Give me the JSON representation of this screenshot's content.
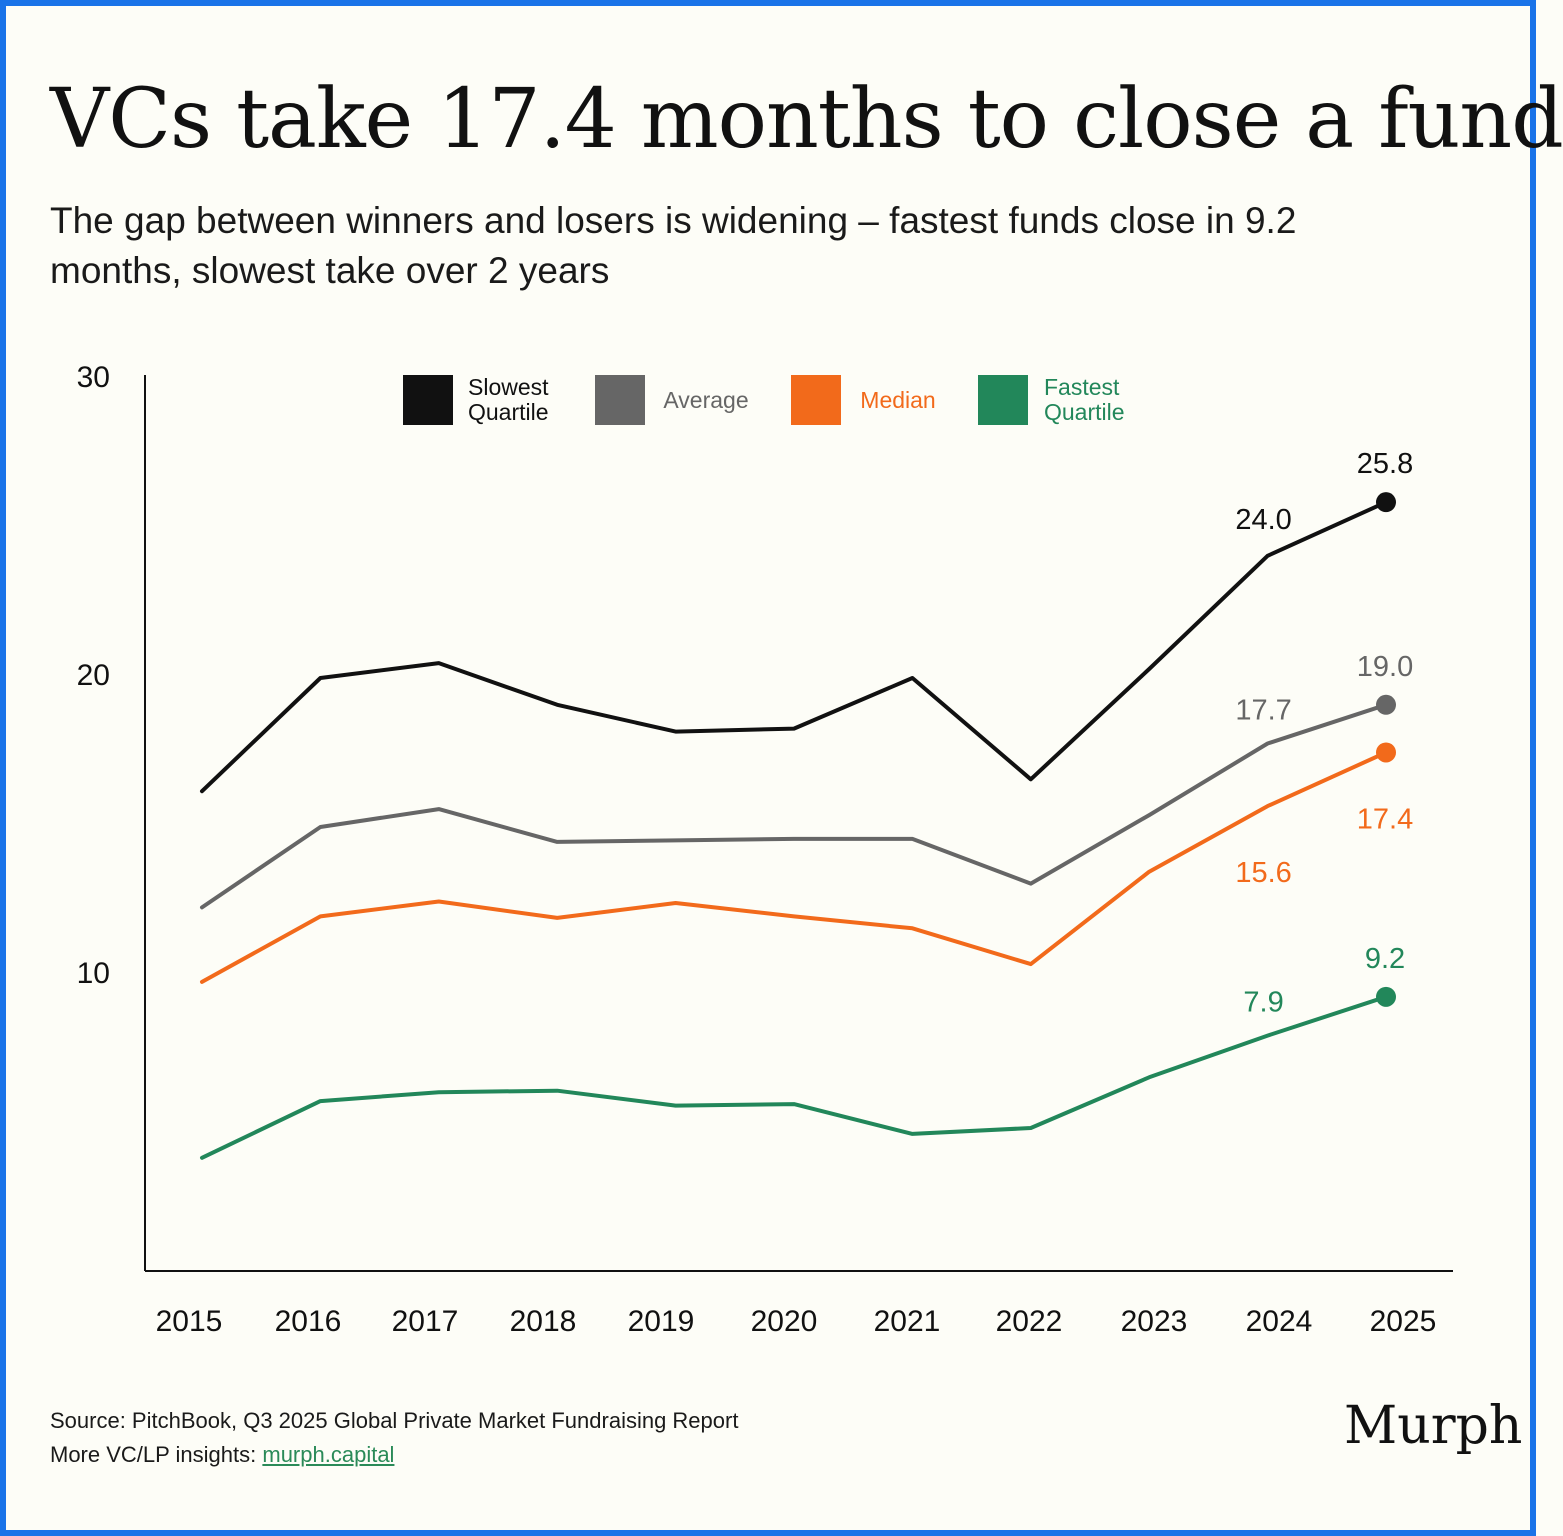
{
  "title": "VCs take 17.4 months to close a fund",
  "subtitle": "The gap between winners and losers is widening – fastest funds close in 9.2 months, slowest take over 2 years",
  "footer": {
    "source": "Source: PitchBook, Q3 2025 Global Private Market Fundraising Report",
    "more_label": "More VC/LP insights:",
    "link_text": "murph.capital"
  },
  "brand": "Murph",
  "colors": {
    "background": "#fdfdf7",
    "border": "#1a73e8",
    "slowest": "#111111",
    "average": "#666666",
    "median": "#f26a1b",
    "fastest": "#22875a"
  },
  "chart_data": {
    "type": "line",
    "categories": [
      "2015",
      "2016",
      "2017",
      "2018",
      "2019",
      "2020",
      "2021",
      "2022",
      "2023",
      "2024",
      "2025"
    ],
    "ylim": [
      0,
      30
    ],
    "yticks": [
      "10",
      "20",
      "30"
    ],
    "legend_position": "top",
    "series": [
      {
        "key": "slowest",
        "name": "Slowest Quartile",
        "legend_lines": [
          "Slowest",
          "Quartile"
        ],
        "color": "#111111",
        "values": [
          16.1,
          19.9,
          20.4,
          19.0,
          18.1,
          18.2,
          19.9,
          16.5,
          20.2,
          24.0,
          25.8
        ]
      },
      {
        "key": "average",
        "name": "Average",
        "legend_lines": [
          "Average"
        ],
        "color": "#666666",
        "values": [
          12.2,
          14.9,
          15.5,
          14.4,
          14.45,
          14.5,
          14.5,
          13.0,
          15.3,
          17.7,
          19.0
        ]
      },
      {
        "key": "median",
        "name": "Median",
        "legend_lines": [
          "Median"
        ],
        "color": "#f26a1b",
        "values": [
          9.7,
          11.9,
          12.4,
          11.85,
          12.35,
          11.9,
          11.5,
          10.3,
          13.4,
          15.6,
          17.4
        ]
      },
      {
        "key": "fastest",
        "name": "Fastest Quartile",
        "legend_lines": [
          "Fastest",
          "Quartile"
        ],
        "color": "#22875a",
        "values": [
          3.8,
          5.7,
          6.0,
          6.05,
          5.55,
          5.6,
          4.6,
          4.8,
          6.5,
          7.9,
          9.2
        ]
      }
    ],
    "annotations": [
      {
        "series": "slowest",
        "index": 9,
        "label": "24.0"
      },
      {
        "series": "slowest",
        "index": 10,
        "label": "25.8"
      },
      {
        "series": "average",
        "index": 9,
        "label": "17.7"
      },
      {
        "series": "average",
        "index": 10,
        "label": "19.0"
      },
      {
        "series": "median",
        "index": 9,
        "label": "15.6"
      },
      {
        "series": "median",
        "index": 10,
        "label": "17.4"
      },
      {
        "series": "fastest",
        "index": 9,
        "label": "7.9"
      },
      {
        "series": "fastest",
        "index": 10,
        "label": "9.2"
      }
    ]
  }
}
